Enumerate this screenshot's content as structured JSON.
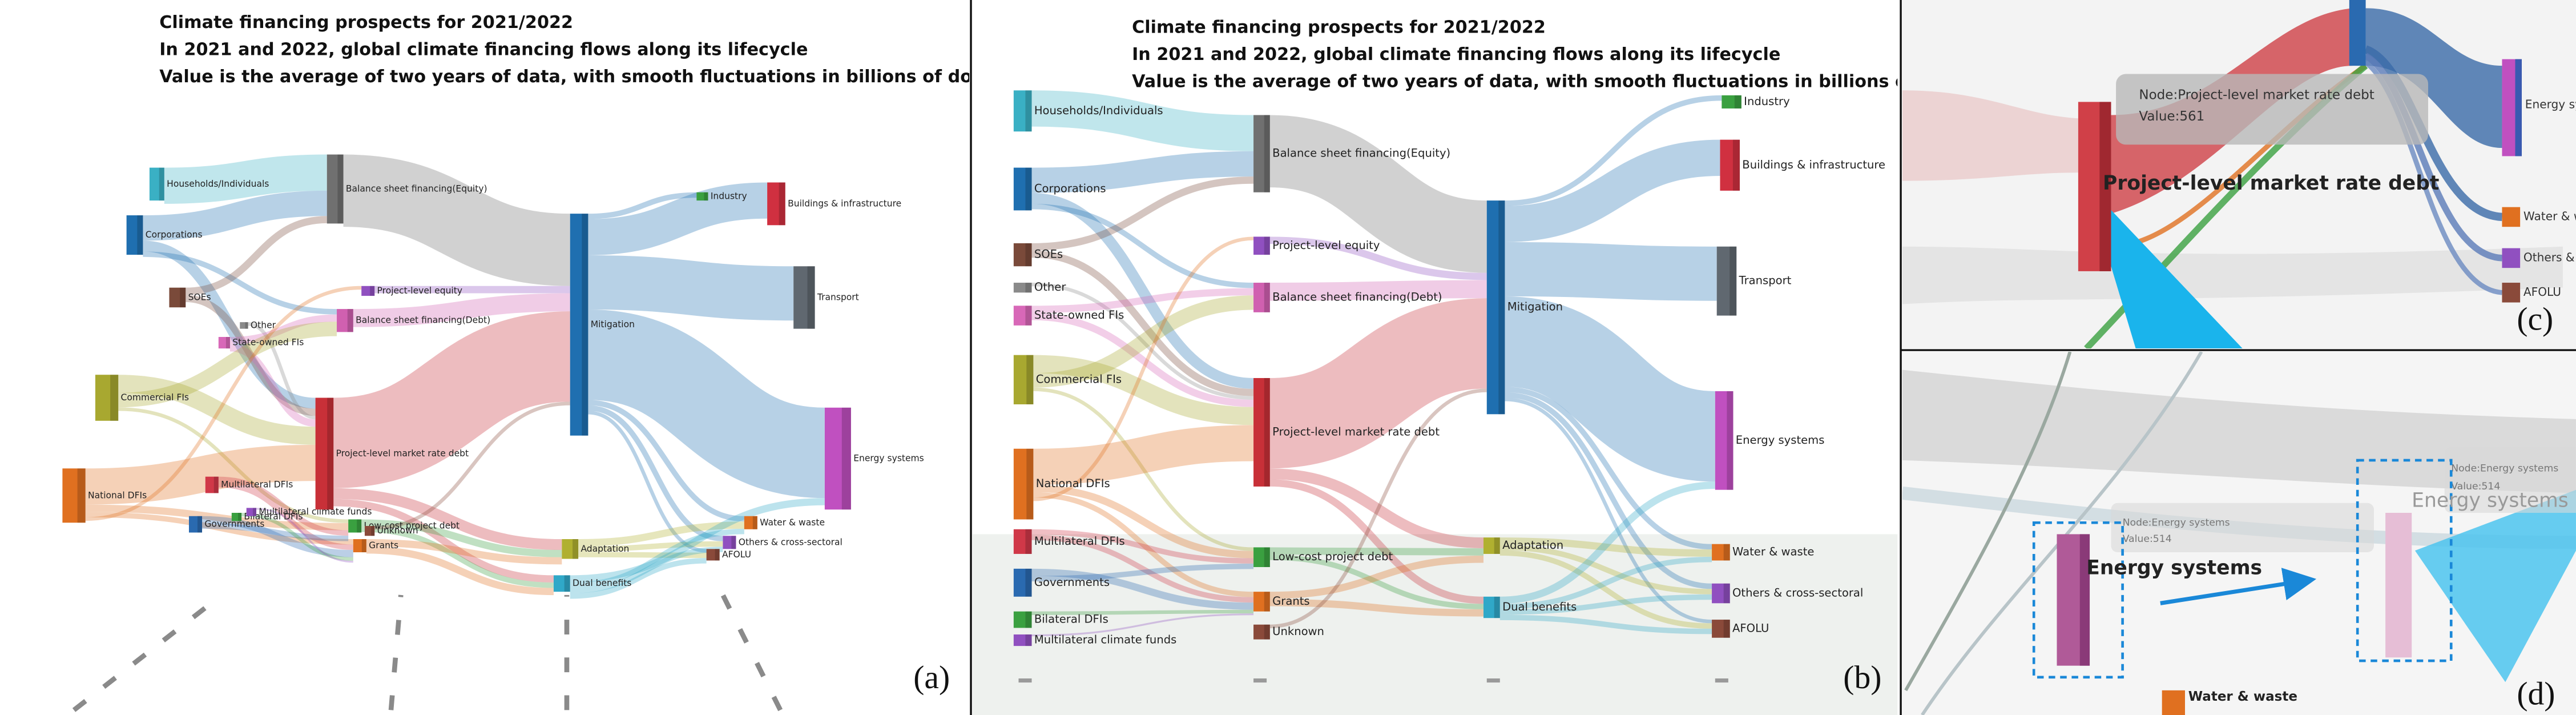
{
  "panels": [
    {
      "label": "(a)",
      "title": [
        "Climate financing prospects for 2021/2022",
        "In 2021 and 2022, global climate financing flows along its lifecycle",
        "Value is the average of two years of data, with smooth fluctuations in billions of dollars"
      ]
    },
    {
      "label": "(b)",
      "title": [
        "Climate financing prospects for 2021/2022",
        "In 2021 and 2022, global climate financing flows along its lifecycle",
        "Value is the average of two years of data, with smooth fluctuations in billions of dollars"
      ]
    },
    {
      "label": "(c)",
      "tooltip": [
        "Node:Project-level market rate debt",
        "Value:561"
      ]
    },
    {
      "label": "(d)",
      "tooltip": [
        "Node:Energy systems",
        "Value:514"
      ]
    }
  ],
  "nodes": [
    {
      "label": "Households/Individuals",
      "color": "#3ab0c4"
    },
    {
      "label": "Corporations",
      "color": "#1f6fb0"
    },
    {
      "label": "SOEs",
      "color": "#7a4a3a"
    },
    {
      "label": "Other",
      "color": "#8a8a8a"
    },
    {
      "label": "State-owned FIs",
      "color": "#d868b8"
    },
    {
      "label": "Commercial FIs",
      "color": "#a8a830"
    },
    {
      "label": "National DFIs",
      "color": "#e07020"
    },
    {
      "label": "Multilateral DFIs",
      "color": "#d03848"
    },
    {
      "label": "Governments",
      "color": "#2a6ab0"
    },
    {
      "label": "Bilateral DFIs",
      "color": "#3aa040"
    },
    {
      "label": "Multilateral climate funds",
      "color": "#9050c0"
    },
    {
      "label": "Balance sheet financing(Equity)",
      "color": "#707070"
    },
    {
      "label": "Project-level equity",
      "color": "#9050c0"
    },
    {
      "label": "Balance sheet financing(Debt)",
      "color": "#d060b0"
    },
    {
      "label": "Project-level market rate debt",
      "color": "#c83038"
    },
    {
      "label": "Low-cost project debt",
      "color": "#3aa040"
    },
    {
      "label": "Grants",
      "color": "#e07020"
    },
    {
      "label": "Unknown",
      "color": "#8a4a3a"
    },
    {
      "label": "Mitigation",
      "color": "#1f6fb0"
    },
    {
      "label": "Adaptation",
      "color": "#b0b030"
    },
    {
      "label": "Dual benefits",
      "color": "#30a8c8"
    },
    {
      "label": "Industry",
      "color": "#3aa040"
    },
    {
      "label": "Buildings & infrastructure",
      "color": "#d03040"
    },
    {
      "label": "Transport",
      "color": "#606870"
    },
    {
      "label": "Energy systems",
      "color": "#c050c0"
    },
    {
      "label": "Water & waste",
      "color": "#e07020"
    },
    {
      "label": "Others & cross-sectoral",
      "color": "#9050c0"
    },
    {
      "label": "AFOLU",
      "color": "#8a4a3a"
    }
  ]
}
